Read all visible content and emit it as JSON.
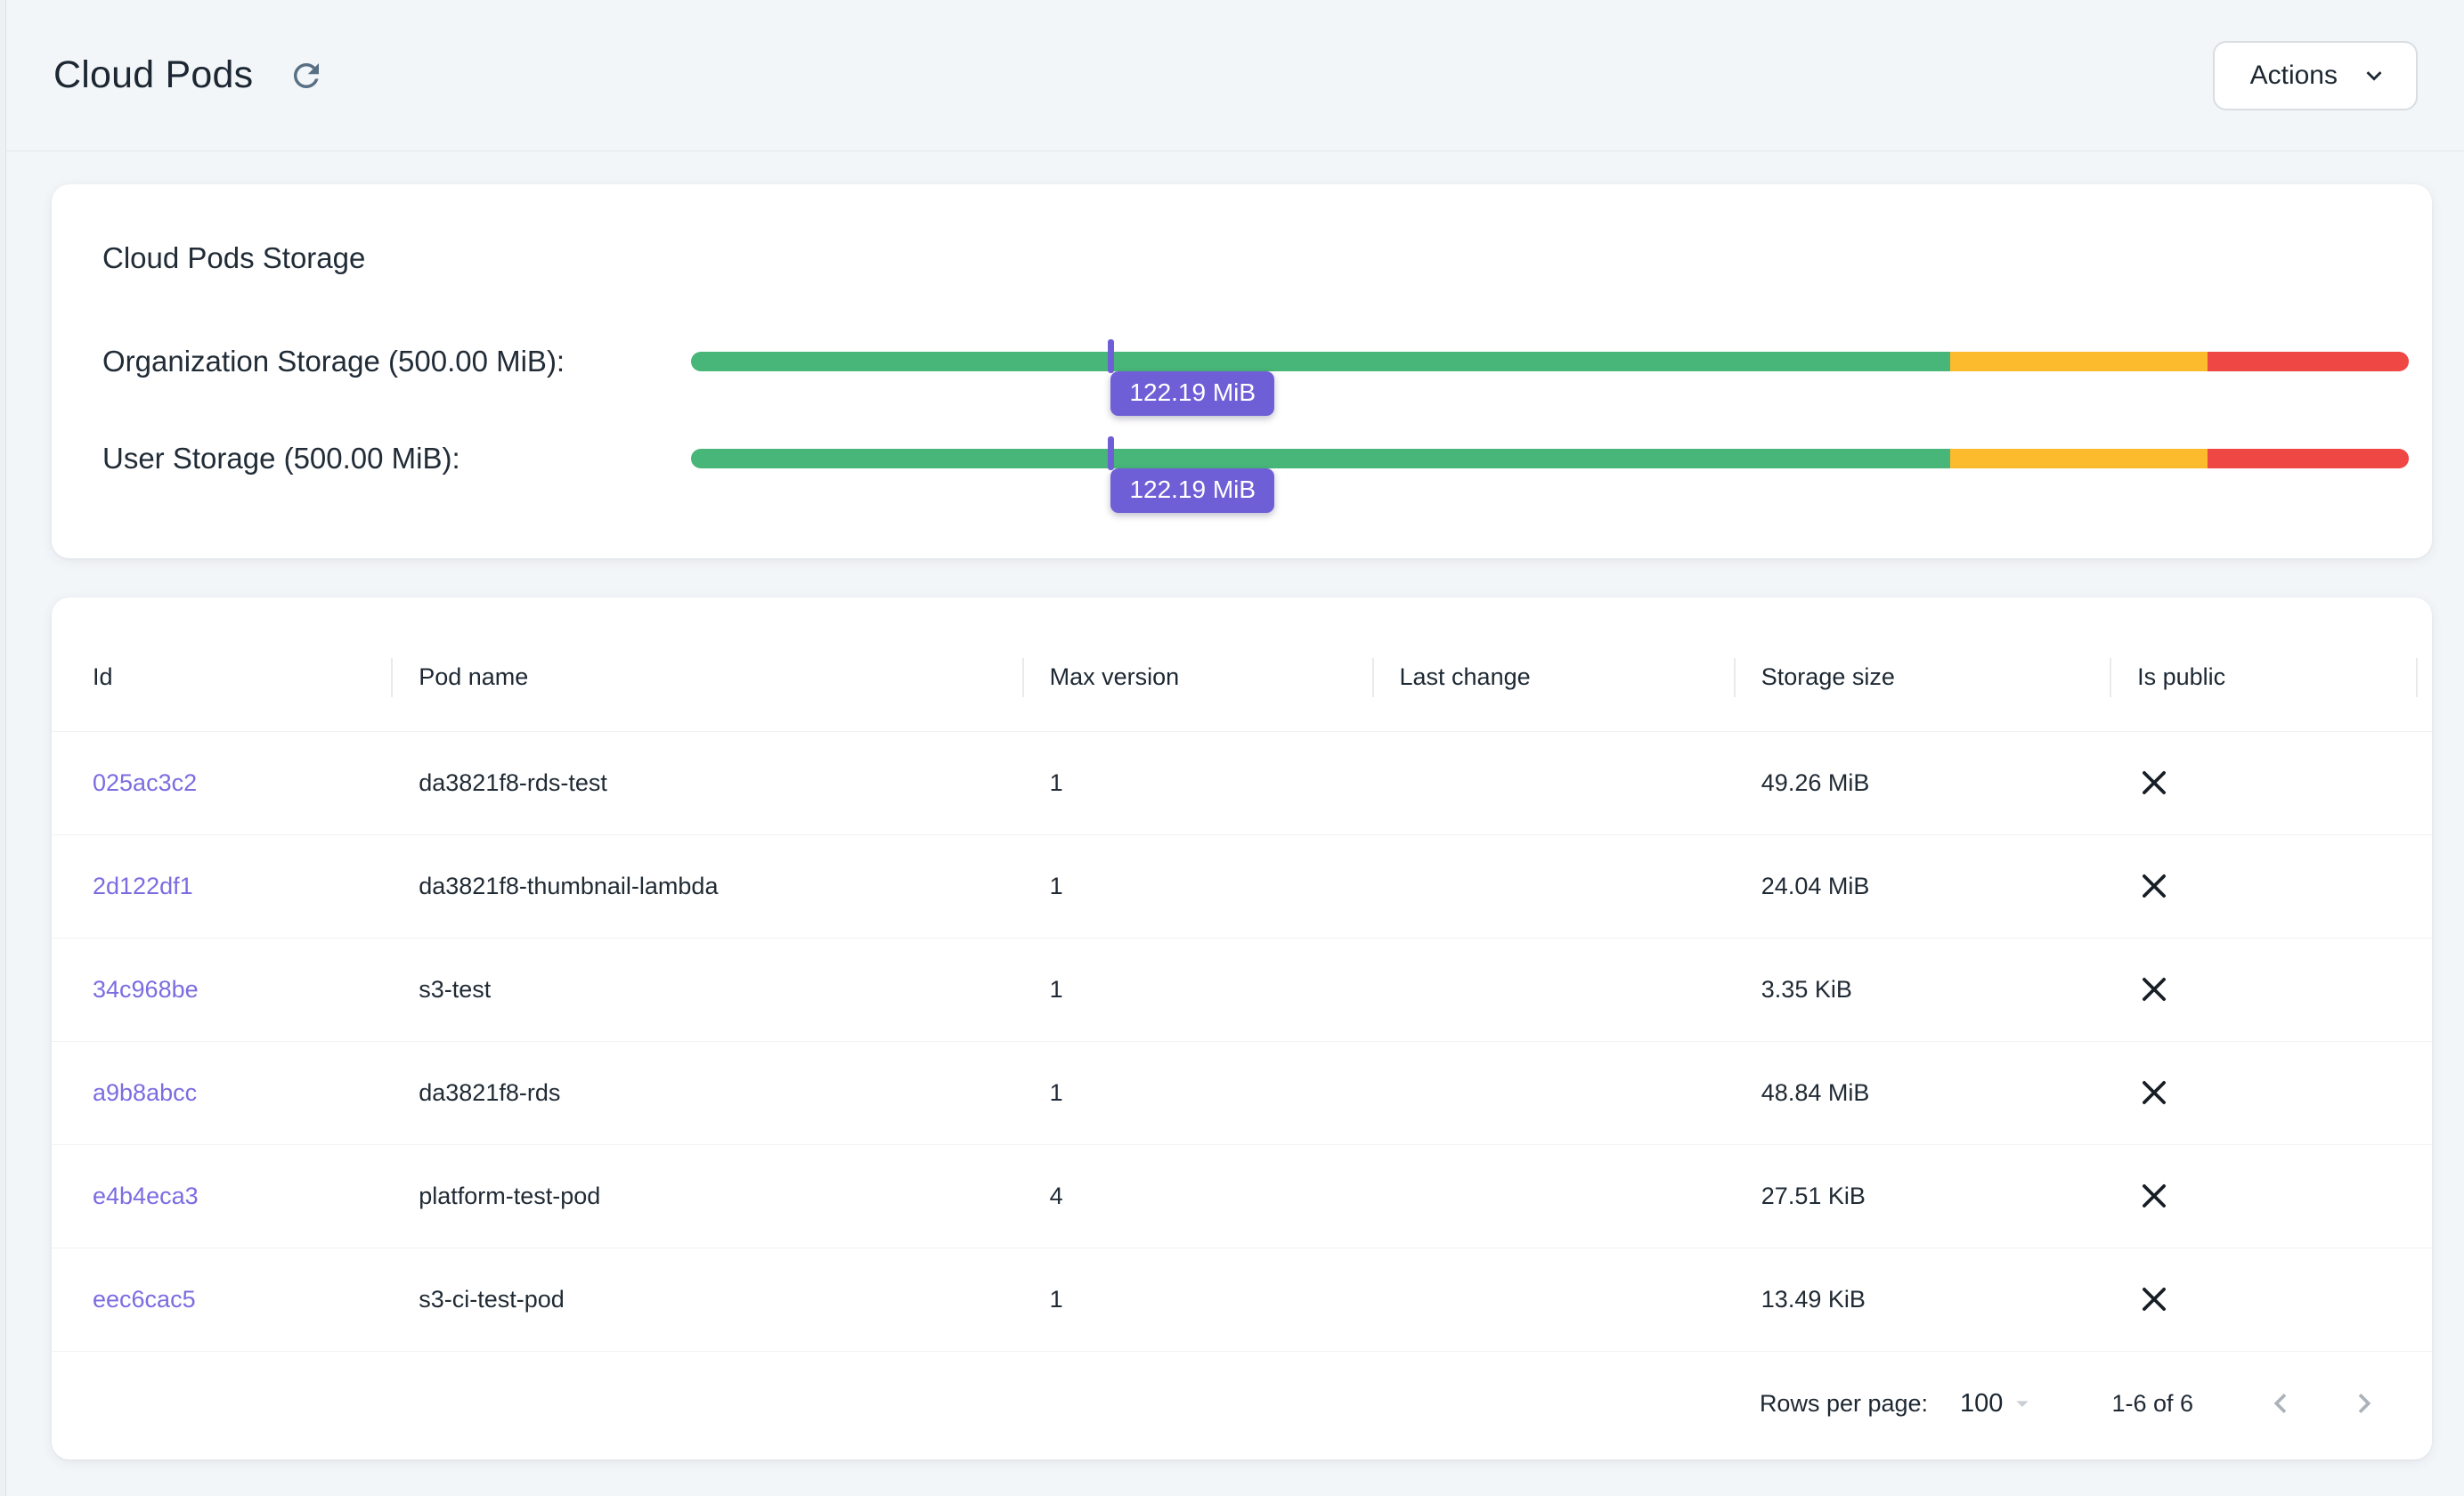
{
  "page": {
    "title": "Cloud Pods"
  },
  "topbar": {
    "actions_label": "Actions",
    "icons": {
      "refresh": "refresh-icon",
      "dropdown": "chevron-down-icon"
    }
  },
  "colors": {
    "link_purple": "#7b6ce1",
    "marker_purple": "#6f5fd6",
    "bar_green": "#48b679",
    "bar_yellow": "#fcba2d",
    "bar_red": "#ee4744"
  },
  "storage_card": {
    "title": "Cloud Pods Storage",
    "segments": {
      "green_pct": 73.3,
      "yellow_pct": 15.0,
      "red_pct": 11.7
    },
    "bars": [
      {
        "label": "Organization Storage (500.00 MiB):",
        "value_label": "122.19 MiB",
        "percent": 24.44
      },
      {
        "label": "User Storage (500.00 MiB):",
        "value_label": "122.19 MiB",
        "percent": 24.44
      }
    ]
  },
  "table": {
    "columns": [
      "Id",
      "Pod name",
      "Max version",
      "Last change",
      "Storage size",
      "Is public"
    ],
    "rows": [
      {
        "id": "025ac3c2",
        "pod_name": "da3821f8-rds-test",
        "max_version": "1",
        "last_change": "",
        "storage_size": "49.26 MiB",
        "is_public": false
      },
      {
        "id": "2d122df1",
        "pod_name": "da3821f8-thumbnail-lambda",
        "max_version": "1",
        "last_change": "",
        "storage_size": "24.04 MiB",
        "is_public": false
      },
      {
        "id": "34c968be",
        "pod_name": "s3-test",
        "max_version": "1",
        "last_change": "",
        "storage_size": "3.35 KiB",
        "is_public": false
      },
      {
        "id": "a9b8abcc",
        "pod_name": "da3821f8-rds",
        "max_version": "1",
        "last_change": "",
        "storage_size": "48.84 MiB",
        "is_public": false
      },
      {
        "id": "e4b4eca3",
        "pod_name": "platform-test-pod",
        "max_version": "4",
        "last_change": "",
        "storage_size": "27.51 KiB",
        "is_public": false
      },
      {
        "id": "eec6cac5",
        "pod_name": "s3-ci-test-pod",
        "max_version": "1",
        "last_change": "",
        "storage_size": "13.49 KiB",
        "is_public": false
      }
    ],
    "pagination": {
      "rows_per_page_label": "Rows per page:",
      "rows_per_page_value": "100",
      "range_label": "1-6 of 6"
    }
  }
}
